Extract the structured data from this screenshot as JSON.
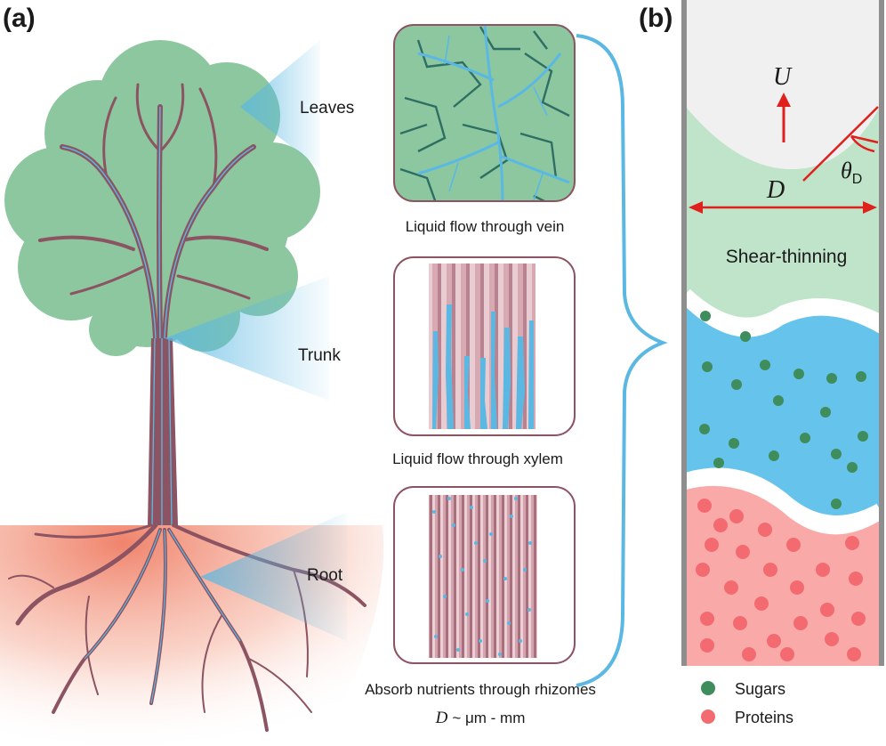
{
  "panel_a": {
    "label": "(a)",
    "callouts": {
      "leaves": "Leaves",
      "trunk": "Trunk",
      "root": "Root"
    },
    "captions": {
      "vein": "Liquid flow through vein",
      "xylem": "Liquid flow through xylem",
      "rhizomes": "Absorb nutrients through rhizomes"
    },
    "scale": {
      "symbol": "D",
      "range": "~ μm - mm"
    }
  },
  "panel_b": {
    "label": "(b)",
    "velocity_symbol": "U",
    "diameter_symbol": "D",
    "angle_symbol": "θ",
    "angle_subscript": "D",
    "fluid_label": "Shear-thinning",
    "legend": {
      "sugars": "Sugars",
      "proteins": "Proteins"
    }
  },
  "colors": {
    "leaf_green": "#8cc7a0",
    "vein_blue": "#5ab8e3",
    "bark": "#8c5462",
    "soil": "#ef8c74",
    "sugar": "#3f8c5c",
    "protein": "#f36b70",
    "fluid_blue": "#66c3eb",
    "fluid_pink": "#f9a9a8",
    "fluid_green": "#bfe4c9",
    "arrow_red": "#e0201c"
  }
}
